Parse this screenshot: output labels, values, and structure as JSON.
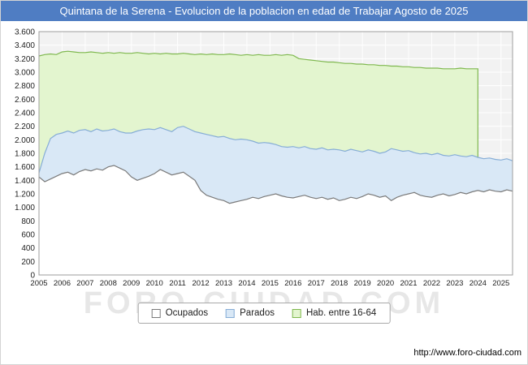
{
  "title": "Quintana de la Serena - Evolucion de la poblacion en edad de Trabajar Agosto de 2025",
  "watermark": "FORO-CIUDAD.COM",
  "footer": {
    "url": "http://www.foro-ciudad.com"
  },
  "colors": {
    "title_bar_bg": "#4f7dc3",
    "plot_bg": "#f2f2f2",
    "grid": "#ffffff",
    "plot_border": "#9e9e9e",
    "axis_text": "#222222",
    "hab_fill": "#e3f5cf",
    "hab_stroke": "#7fb84f",
    "parados_fill": "#d9e8f6",
    "parados_stroke": "#86add6",
    "ocupados_fill": "#ffffff",
    "ocupados_stroke": "#7a7a7a"
  },
  "legend": [
    {
      "label": "Ocupados",
      "fill": "#ffffff",
      "stroke": "#7a7a7a"
    },
    {
      "label": "Parados",
      "fill": "#d9e8f6",
      "stroke": "#86add6"
    },
    {
      "label": "Hab. entre 16-64",
      "fill": "#e3f5cf",
      "stroke": "#7fb84f"
    }
  ],
  "chart_data": {
    "type": "area",
    "title": "Quintana de la Serena - Evolucion de la poblacion en edad de Trabajar Agosto de 2025",
    "xlabel": "",
    "ylabel": "",
    "ylim": [
      0,
      3600
    ],
    "ytick_step": 200,
    "y_tick_labels": [
      "0",
      "200",
      "400",
      "600",
      "800",
      "1.000",
      "1.200",
      "1.400",
      "1.600",
      "1.800",
      "2.000",
      "2.200",
      "2.400",
      "2.600",
      "2.800",
      "3.000",
      "3.200",
      "3.400",
      "3.600"
    ],
    "x_tick_labels": [
      "2005",
      "2006",
      "2007",
      "2008",
      "2009",
      "2010",
      "2011",
      "2012",
      "2013",
      "2014",
      "2015",
      "2016",
      "2017",
      "2018",
      "2019",
      "2020",
      "2021",
      "2022",
      "2023",
      "2024",
      "2025"
    ],
    "x_start": 2005,
    "x_step": 0.25,
    "x_end": 2025.5,
    "grid": true,
    "legend_position": "bottom",
    "note": "Quarterly estimates read from plot; Parados values are stacked on top of Ocupados; Hab. entre 16-64 series ends at start of 2024.",
    "series": {
      "ocupados": {
        "label": "Ocupados",
        "values": [
          1450,
          1380,
          1420,
          1460,
          1500,
          1520,
          1480,
          1530,
          1560,
          1540,
          1570,
          1550,
          1600,
          1620,
          1580,
          1540,
          1450,
          1400,
          1430,
          1460,
          1500,
          1560,
          1520,
          1480,
          1500,
          1520,
          1460,
          1400,
          1250,
          1180,
          1150,
          1120,
          1100,
          1060,
          1080,
          1100,
          1120,
          1150,
          1130,
          1160,
          1180,
          1200,
          1170,
          1150,
          1140,
          1160,
          1180,
          1150,
          1130,
          1150,
          1120,
          1140,
          1100,
          1120,
          1150,
          1130,
          1160,
          1200,
          1180,
          1150,
          1170,
          1100,
          1150,
          1180,
          1200,
          1220,
          1180,
          1160,
          1150,
          1180,
          1200,
          1170,
          1190,
          1220,
          1200,
          1230,
          1250,
          1230,
          1260,
          1240,
          1230,
          1260,
          1240
        ]
      },
      "parados": {
        "label": "Parados",
        "values": [
          60,
          420,
          600,
          620,
          600,
          610,
          620,
          610,
          590,
          580,
          590,
          580,
          540,
          540,
          540,
          560,
          650,
          730,
          720,
          700,
          650,
          620,
          630,
          640,
          680,
          680,
          700,
          720,
          850,
          900,
          910,
          920,
          950,
          960,
          920,
          910,
          880,
          830,
          820,
          800,
          770,
          730,
          730,
          740,
          760,
          720,
          720,
          720,
          730,
          730,
          730,
          720,
          750,
          710,
          710,
          710,
          660,
          650,
          650,
          650,
          650,
          770,
          700,
          650,
          640,
          590,
          610,
          640,
          630,
          620,
          570,
          590,
          590,
          540,
          550,
          540,
          490,
          490,
          470,
          470,
          470,
          460,
          450
        ]
      },
      "hab_16_64": {
        "label": "Hab. entre 16-64",
        "values": [
          3240,
          3260,
          3270,
          3260,
          3300,
          3310,
          3300,
          3290,
          3290,
          3300,
          3290,
          3280,
          3290,
          3280,
          3290,
          3280,
          3280,
          3290,
          3280,
          3270,
          3280,
          3270,
          3280,
          3270,
          3270,
          3280,
          3270,
          3260,
          3270,
          3260,
          3270,
          3260,
          3260,
          3270,
          3260,
          3250,
          3260,
          3250,
          3260,
          3250,
          3250,
          3260,
          3250,
          3260,
          3250,
          3200,
          3190,
          3180,
          3170,
          3160,
          3150,
          3150,
          3140,
          3130,
          3130,
          3120,
          3120,
          3110,
          3110,
          3100,
          3100,
          3090,
          3090,
          3080,
          3080,
          3070,
          3070,
          3060,
          3060,
          3060,
          3050,
          3050,
          3050,
          3060,
          3050,
          3050,
          3050,
          null,
          null,
          null,
          null,
          null,
          null
        ]
      }
    }
  }
}
